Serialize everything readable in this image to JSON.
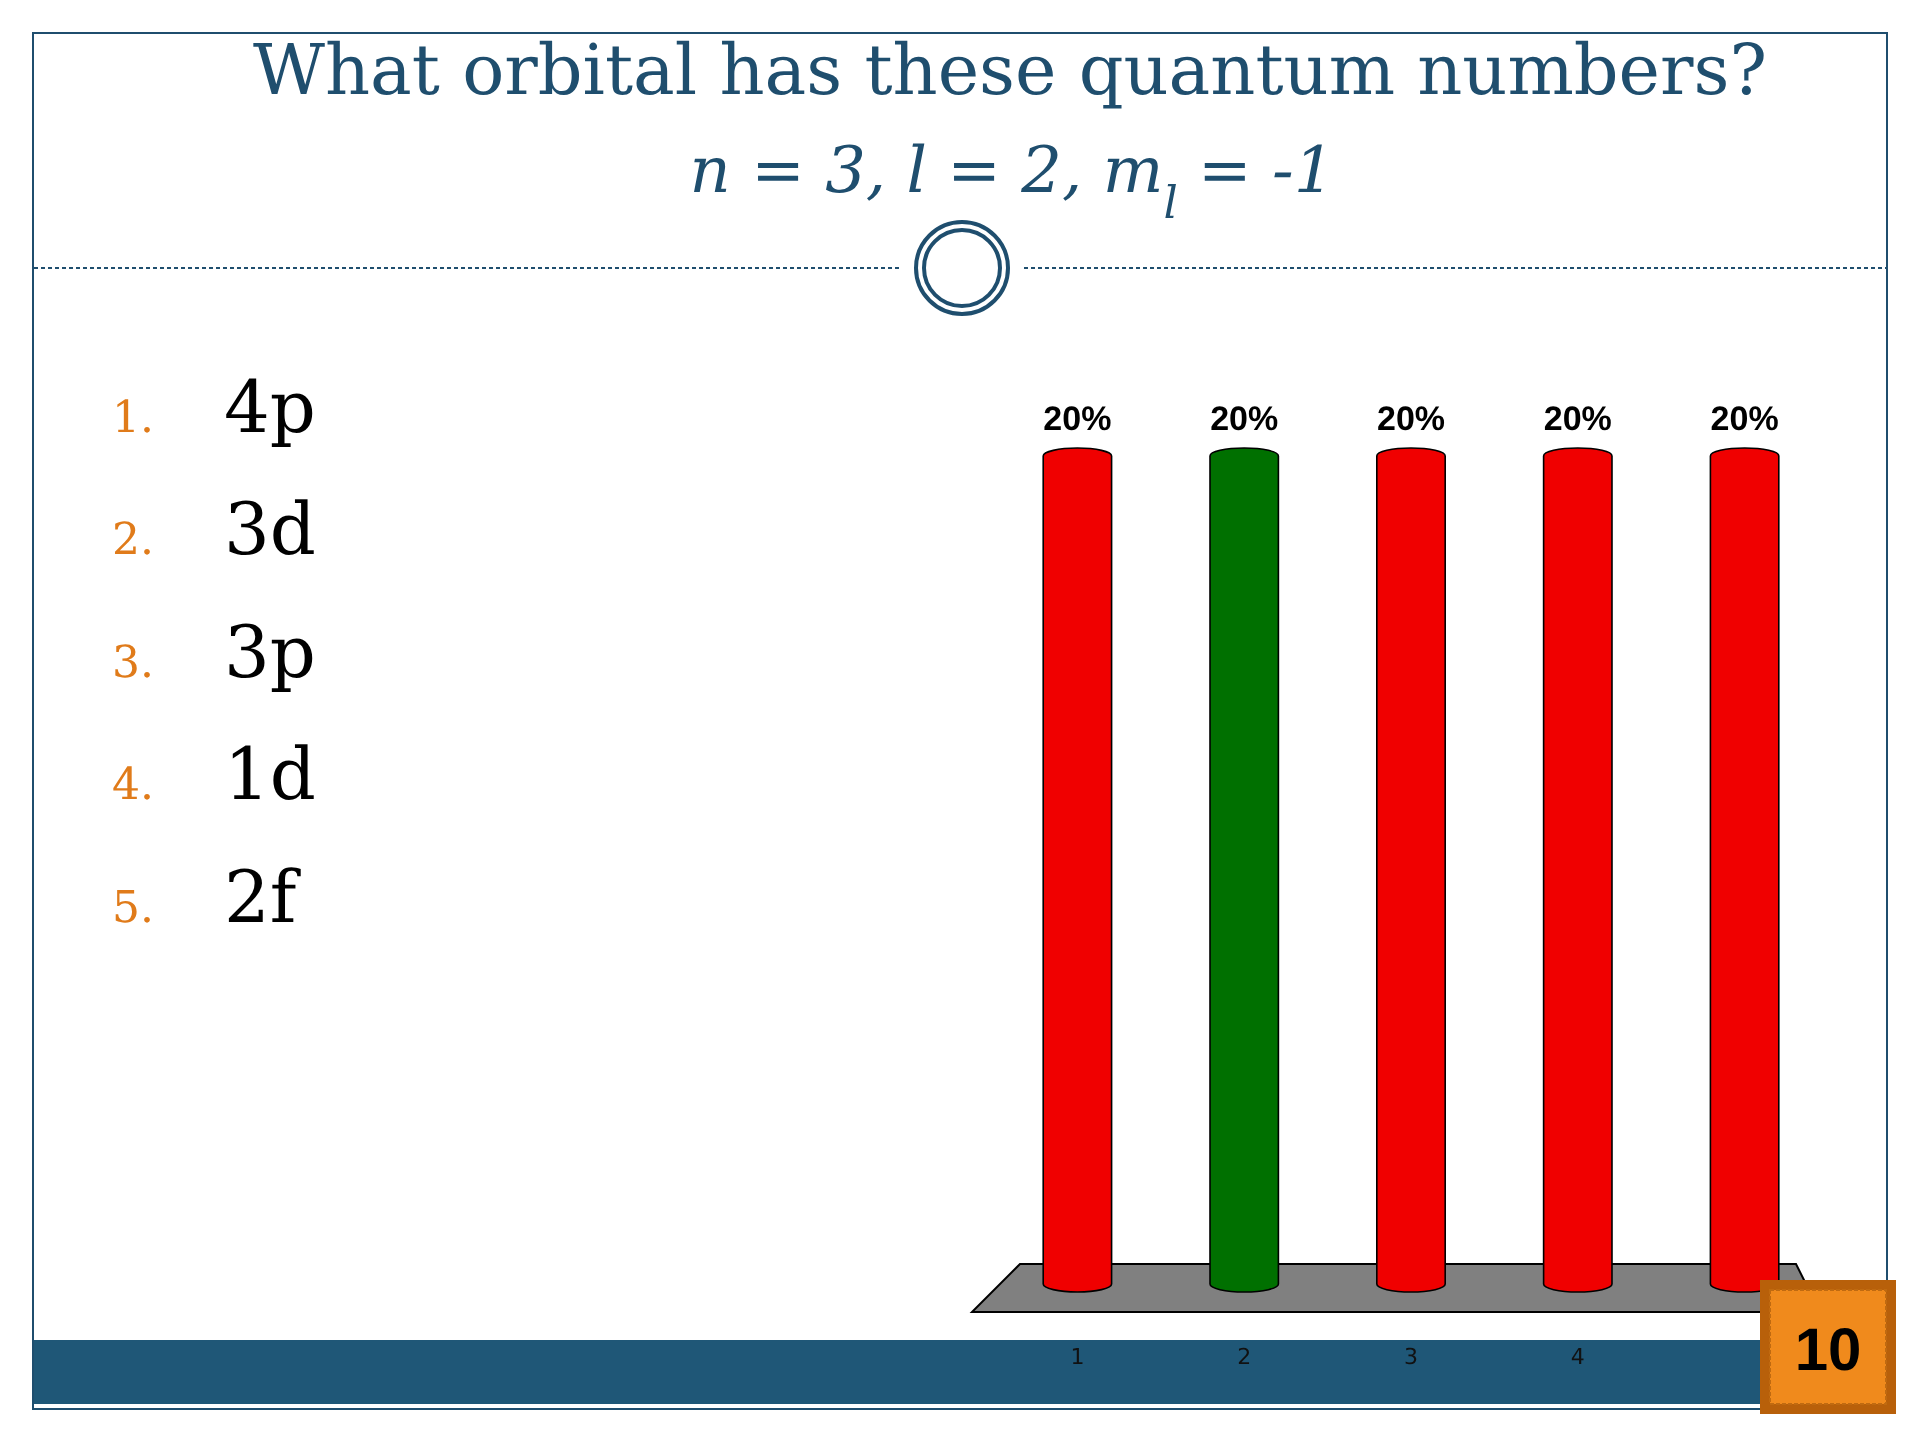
{
  "chart_data": {
    "type": "bar",
    "title": "What orbital has these quantum numbers?",
    "subtitle": "n = 3, l = 2, m$_{l}$ = -1",
    "categories": [
      "1",
      "2",
      "3",
      "4",
      null
    ],
    "values": [
      20,
      20,
      20,
      20,
      20
    ],
    "colors": [
      "#f00000",
      "#007000",
      "#f00000",
      "#f00000",
      "#f00000"
    ],
    "value_labels": [
      "20%",
      "20%",
      "20%",
      "20%",
      "20%"
    ],
    "annotations": [
      "1. 4p",
      "2. 3d",
      "3. 3p",
      "4. 1d",
      "5. 2f",
      "10"
    ]
  }
}
